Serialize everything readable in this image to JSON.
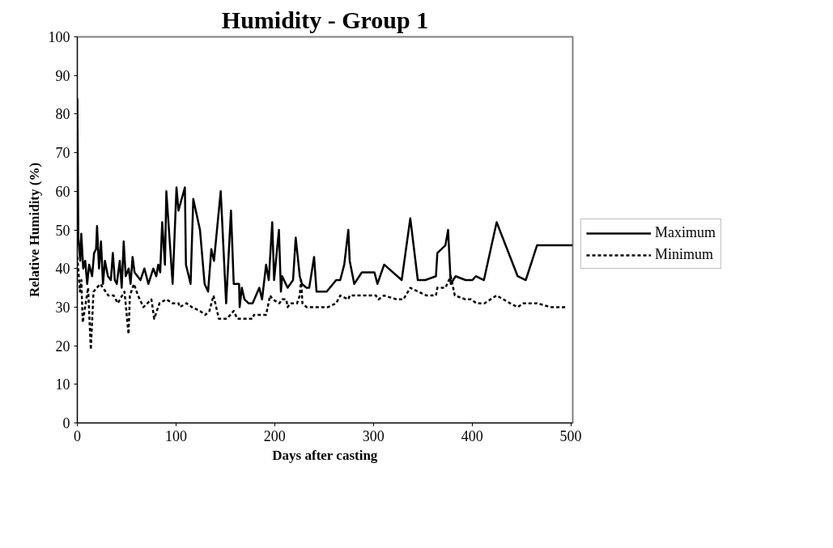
{
  "chart_data": {
    "type": "line",
    "title": "Humidity - Group 1",
    "xlabel": "Days after casting",
    "ylabel": "Relative Humidity (%)",
    "xlim": [
      0,
      502
    ],
    "xticks": [
      0,
      100,
      200,
      300,
      400,
      500
    ],
    "ylim": [
      0,
      100
    ],
    "yticks": [
      0,
      10,
      20,
      30,
      40,
      50,
      60,
      70,
      80,
      90,
      100
    ],
    "grid": false,
    "legend": "right",
    "marker": "none",
    "series": [
      {
        "name": "Maximum",
        "color": "#000000",
        "line_style": "solid",
        "x": [
          0,
          1,
          3,
          4,
          6,
          8,
          10,
          12,
          15,
          17,
          19,
          20,
          22,
          24,
          26,
          28,
          31,
          34,
          36,
          38,
          40,
          43,
          45,
          47,
          49,
          52,
          54,
          56,
          58,
          61,
          64,
          68,
          72,
          77,
          80,
          82,
          84,
          86,
          88.8,
          90.2,
          96.6,
          100.5,
          102.5,
          109,
          110.1,
          114.8,
          117.5,
          124.3,
          129,
          132.5,
          135.8,
          138.5,
          145.3,
          150.8,
          155.7,
          158.5,
          163.9,
          164.5,
          166.7,
          169.4,
          173.5,
          177.6,
          184.4,
          187.2,
          191.3,
          194,
          197.5,
          199.4,
          204.3,
          206.3,
          207.6,
          213.1,
          218.6,
          221.3,
          225.4,
          227.6,
          232.2,
          235,
          239.9,
          242.4,
          252.7,
          262.3,
          266.4,
          270.5,
          274.6,
          276,
          280.6,
          288.3,
          301.1,
          304.1,
          310.9,
          328.7,
          337.4,
          345,
          352.5,
          363.4,
          364.8,
          373,
          375.7,
          378.4,
          383.3,
          393.4,
          400.3,
          403.8,
          412,
          424.9,
          446.2,
          454.4,
          465.8,
          502
        ],
        "values": [
          84,
          48,
          42,
          49,
          40,
          42,
          36,
          41,
          38,
          44,
          45,
          51,
          40,
          47,
          36,
          42,
          38,
          37,
          44,
          37,
          36,
          42,
          35,
          47,
          38,
          40,
          36,
          43,
          39,
          38,
          37,
          40,
          36,
          40,
          38,
          41,
          39,
          52,
          41,
          60,
          36,
          61,
          55,
          61,
          41,
          36,
          58,
          50,
          36,
          34,
          45,
          42,
          60,
          31,
          55,
          36,
          36,
          30,
          35,
          32,
          31,
          31,
          35,
          32,
          41,
          37,
          52,
          37,
          50,
          34,
          38,
          35,
          37,
          48,
          38,
          36,
          35,
          35,
          43,
          34,
          34,
          37,
          37,
          41,
          50,
          42,
          36,
          39,
          39,
          36,
          41,
          37,
          53,
          37,
          37,
          38,
          44,
          46,
          50,
          36,
          38,
          37,
          37,
          38,
          37,
          52,
          38,
          37,
          46,
          46
        ]
      },
      {
        "name": "Minimum",
        "color": "#000000",
        "line_style": "dashed",
        "x": [
          0,
          2.7,
          4.1,
          5.5,
          10.9,
          13.7,
          16.4,
          23.2,
          28.7,
          31.4,
          36.9,
          41,
          47.8,
          51.9,
          53.3,
          57.4,
          61.5,
          67,
          75.1,
          77.9,
          83.3,
          90.2,
          96.6,
          102.5,
          103.8,
          110.7,
          116.1,
          124.3,
          129.8,
          133.9,
          138,
          143.4,
          151.6,
          158.5,
          162,
          177.6,
          179,
          191.3,
          195.3,
          198,
          204.8,
          207.6,
          211.7,
          213.1,
          215.8,
          222.7,
          225.4,
          226.7,
          228.1,
          232.2,
          254,
          262.3,
          266.4,
          274.6,
          276,
          302.5,
          305.3,
          310.7,
          323.6,
          330.4,
          337.4,
          345.6,
          353.8,
          363.4,
          364.8,
          373,
          378.4,
          382.5,
          393.4,
          398.9,
          404.4,
          412.6,
          424.9,
          438.5,
          446.2,
          452.2,
          465.8,
          479.5,
          494.5
        ],
        "values": [
          43,
          34,
          37,
          26,
          35,
          19,
          34,
          36,
          34,
          33,
          33,
          31,
          34,
          23,
          33,
          36,
          33,
          30,
          32,
          27,
          31,
          32,
          31,
          31,
          30,
          31,
          30,
          29,
          28,
          29,
          33,
          27,
          27,
          29,
          27,
          27,
          28,
          28,
          33,
          32,
          31,
          32,
          32,
          30,
          31,
          31,
          33,
          37,
          31,
          30,
          30,
          31,
          33,
          32,
          33,
          33,
          32,
          33,
          32,
          32,
          35,
          34,
          33,
          33,
          35,
          35,
          38,
          33,
          32,
          32,
          31,
          31,
          33,
          31,
          30,
          31,
          31,
          30,
          30
        ]
      }
    ]
  }
}
